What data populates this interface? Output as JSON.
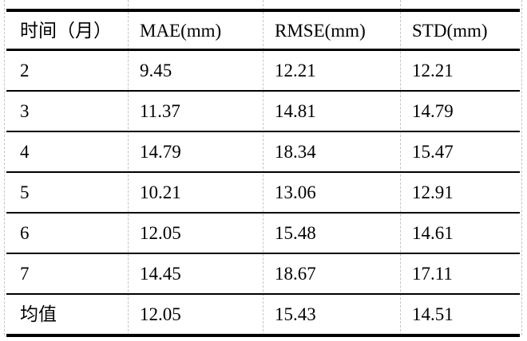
{
  "table": {
    "title": "monthly-error-metrics",
    "columns": [
      "时间（月）",
      "MAE(mm)",
      "RMSE(mm)",
      "STD(mm)"
    ],
    "rows": [
      {
        "cells": [
          "2",
          "9.45",
          "12.21",
          "12.21"
        ]
      },
      {
        "cells": [
          "3",
          "11.37",
          "14.81",
          "14.79"
        ]
      },
      {
        "cells": [
          "4",
          "14.79",
          "18.34",
          "15.47"
        ]
      },
      {
        "cells": [
          "5",
          "10.21",
          "13.06",
          "12.91"
        ]
      },
      {
        "cells": [
          "6",
          "12.05",
          "15.48",
          "14.61"
        ]
      },
      {
        "cells": [
          "7",
          "14.45",
          "18.67",
          "17.11"
        ]
      },
      {
        "cells": [
          "均值",
          "12.05",
          "15.43",
          "14.51"
        ]
      }
    ],
    "colors": {
      "rule": "#000000",
      "gridline": "#c3c3c3",
      "text": "#000000",
      "background": "#ffffff"
    }
  }
}
